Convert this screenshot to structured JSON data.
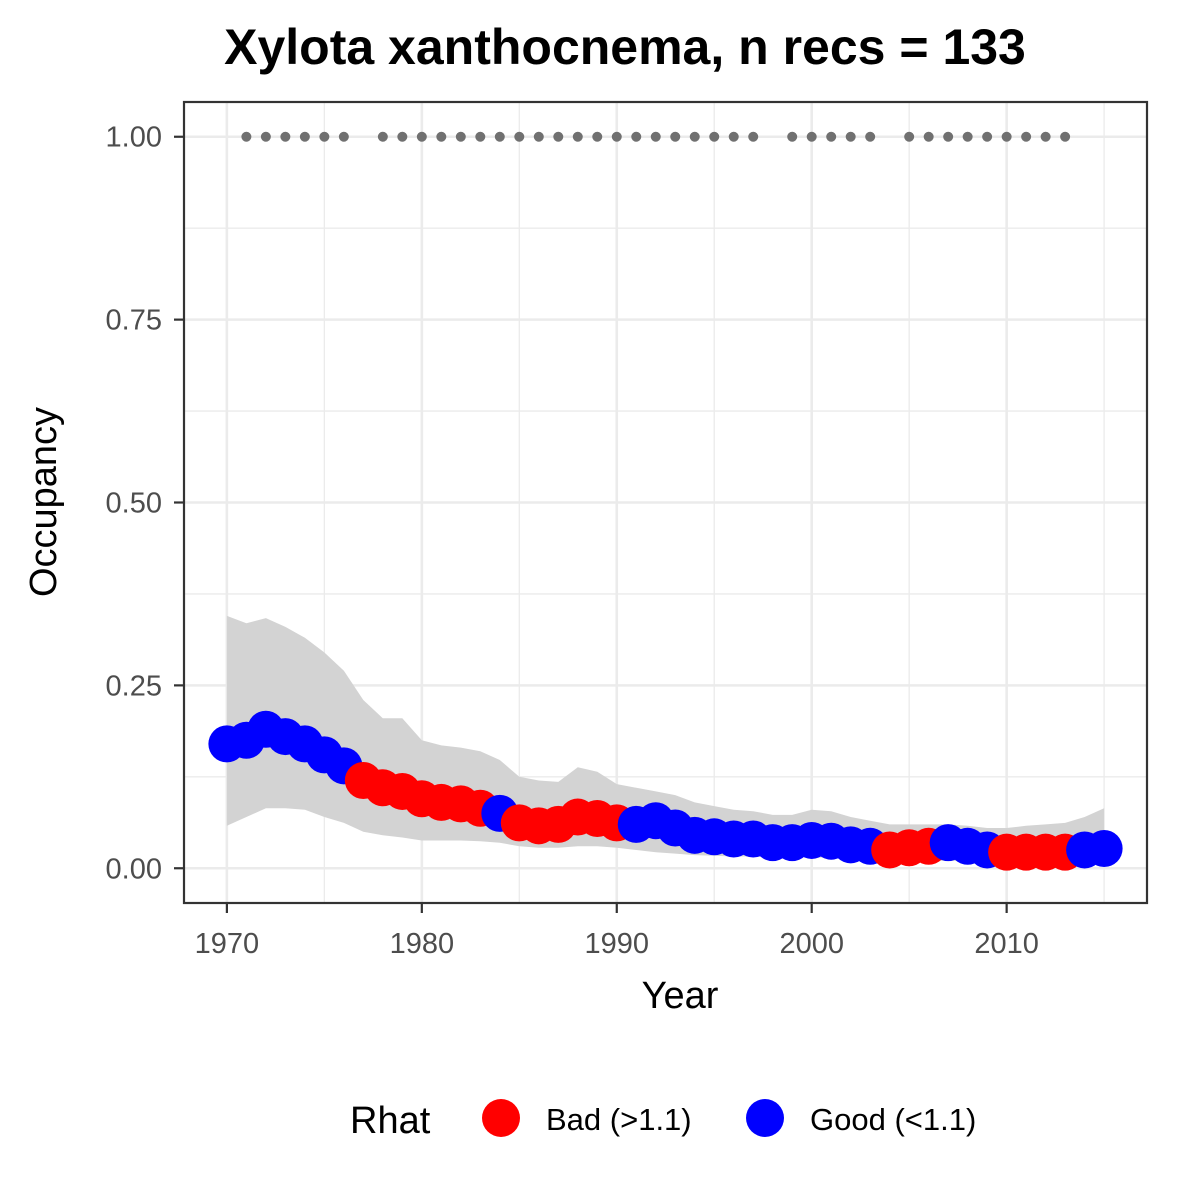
{
  "chart_data": {
    "type": "line",
    "title": "Xylota xanthocnema, n recs = 133",
    "xlabel": "Year",
    "ylabel": "Occupancy",
    "xlim": [
      1967.8,
      1917.2
    ],
    "ylim": [
      -0.0475,
      1.0475
    ],
    "x_ticks": [
      1970,
      1980,
      1990,
      2000,
      2010
    ],
    "x_tick_labels": [
      "1970",
      "1980",
      "1990",
      "2000",
      "2010"
    ],
    "y_ticks": [
      0,
      0.25,
      0.5,
      0.75,
      1.0
    ],
    "y_tick_labels": [
      "0.00",
      "0.25",
      "0.50",
      "0.75",
      "1.00"
    ],
    "grid": true,
    "years": [
      1970,
      1971,
      1972,
      1973,
      1974,
      1975,
      1976,
      1977,
      1978,
      1979,
      1980,
      1981,
      1982,
      1983,
      1984,
      1985,
      1986,
      1987,
      1988,
      1989,
      1990,
      1991,
      1992,
      1993,
      1994,
      1995,
      1996,
      1997,
      1998,
      1999,
      2000,
      2001,
      2002,
      2003,
      2004,
      2005,
      2006,
      2007,
      2008,
      2009,
      2010,
      2011,
      2012,
      2013,
      2014,
      2015
    ],
    "occupancy": [
      0.17,
      0.175,
      0.19,
      0.18,
      0.17,
      0.155,
      0.14,
      0.12,
      0.11,
      0.105,
      0.095,
      0.09,
      0.088,
      0.082,
      0.075,
      0.062,
      0.058,
      0.06,
      0.07,
      0.068,
      0.062,
      0.06,
      0.065,
      0.055,
      0.045,
      0.043,
      0.04,
      0.04,
      0.035,
      0.035,
      0.038,
      0.037,
      0.032,
      0.03,
      0.025,
      0.028,
      0.03,
      0.035,
      0.03,
      0.025,
      0.022,
      0.022,
      0.022,
      0.022,
      0.025,
      0.027
    ],
    "rhat_status": [
      "Good",
      "Good",
      "Good",
      "Good",
      "Good",
      "Good",
      "Good",
      "Bad",
      "Bad",
      "Bad",
      "Bad",
      "Bad",
      "Bad",
      "Bad",
      "Good",
      "Bad",
      "Bad",
      "Bad",
      "Bad",
      "Bad",
      "Bad",
      "Good",
      "Good",
      "Good",
      "Good",
      "Good",
      "Good",
      "Good",
      "Good",
      "Good",
      "Good",
      "Good",
      "Good",
      "Good",
      "Bad",
      "Bad",
      "Bad",
      "Good",
      "Good",
      "Good",
      "Bad",
      "Bad",
      "Bad",
      "Bad",
      "Good",
      "Good"
    ],
    "upper_ci": [
      0.345,
      0.335,
      0.342,
      0.33,
      0.315,
      0.295,
      0.27,
      0.23,
      0.205,
      0.205,
      0.175,
      0.168,
      0.165,
      0.16,
      0.148,
      0.125,
      0.12,
      0.118,
      0.138,
      0.132,
      0.115,
      0.11,
      0.105,
      0.1,
      0.09,
      0.085,
      0.08,
      0.078,
      0.073,
      0.073,
      0.08,
      0.078,
      0.07,
      0.065,
      0.06,
      0.06,
      0.06,
      0.06,
      0.058,
      0.055,
      0.055,
      0.058,
      0.06,
      0.062,
      0.07,
      0.082
    ],
    "lower_ci": [
      0.058,
      0.07,
      0.082,
      0.082,
      0.08,
      0.07,
      0.062,
      0.05,
      0.045,
      0.042,
      0.038,
      0.038,
      0.038,
      0.037,
      0.035,
      0.03,
      0.028,
      0.028,
      0.03,
      0.03,
      0.028,
      0.025,
      0.022,
      0.02,
      0.018,
      0.017,
      0.016,
      0.016,
      0.015,
      0.015,
      0.015,
      0.014,
      0.013,
      0.012,
      0.01,
      0.01,
      0.01,
      0.01,
      0.01,
      0.01,
      0.008,
      0.008,
      0.008,
      0.008,
      0.008,
      0.008
    ],
    "record_years": [
      1971,
      1972,
      1973,
      1974,
      1975,
      1976,
      1978,
      1979,
      1980,
      1981,
      1982,
      1983,
      1984,
      1985,
      1986,
      1987,
      1988,
      1989,
      1990,
      1991,
      1992,
      1993,
      1994,
      1995,
      1996,
      1997,
      1999,
      2000,
      2001,
      2002,
      2003,
      2005,
      2006,
      2007,
      2008,
      2009,
      2010,
      2011,
      2012,
      2013
    ],
    "record_value": 1.0,
    "legend": {
      "title": "Rhat",
      "position": "bottom",
      "entries": [
        {
          "label": "Bad (>1.1)",
          "key": "Bad"
        },
        {
          "label": "Good (<1.1)",
          "key": "Good"
        }
      ]
    },
    "colors": {
      "Bad": "#ff0000",
      "Good": "#0000ff",
      "ribbon": "#d3d3d3",
      "record_dots": "#707070",
      "grid": "#ebebeb",
      "panel_border": "#333333"
    }
  }
}
